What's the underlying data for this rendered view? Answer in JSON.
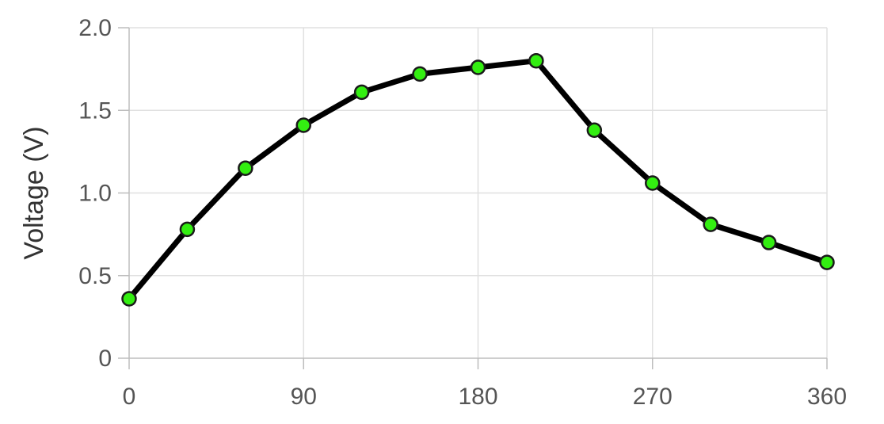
{
  "chart_data": {
    "type": "line",
    "title": "",
    "xlabel": "",
    "ylabel": "Voltage (V)",
    "xlim": [
      0,
      360
    ],
    "ylim": [
      0,
      2.0
    ],
    "x_ticks": [
      "0",
      "90",
      "180",
      "270",
      "360"
    ],
    "x_tick_values": [
      0,
      90,
      180,
      270,
      360
    ],
    "y_ticks": [
      "0",
      "0.5",
      "1.0",
      "1.5",
      "2.0"
    ],
    "y_tick_values": [
      0,
      0.5,
      1.0,
      1.5,
      2.0
    ],
    "grid": true,
    "series": [
      {
        "line_color": "#000000",
        "marker_color": "#33ee11",
        "x": [
          0,
          30,
          60,
          90,
          120,
          150,
          180,
          210,
          240,
          270,
          300,
          330,
          360
        ],
        "y": [
          0.36,
          0.78,
          1.15,
          1.41,
          1.61,
          1.72,
          1.76,
          1.8,
          1.38,
          1.06,
          0.81,
          0.7,
          0.58
        ]
      }
    ]
  }
}
